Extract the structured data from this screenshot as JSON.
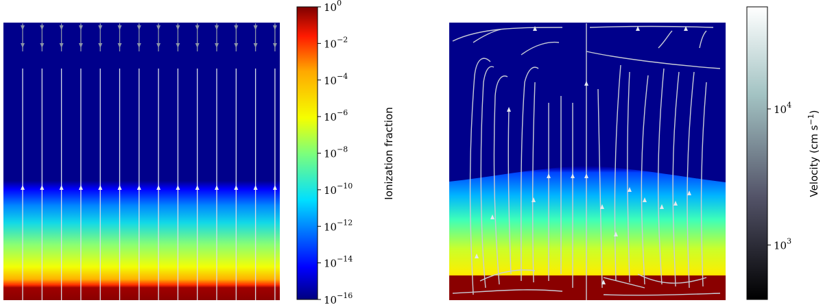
{
  "chart_data": [
    {
      "type": "heatmap",
      "panel": "left",
      "colormap": "jet",
      "z_scale": "log",
      "colorbar": {
        "label": "Ionization fraction",
        "min": 1e-16,
        "max": 1,
        "ticks": [
          {
            "base": "10",
            "exp": "0",
            "value": 1
          },
          {
            "base": "10",
            "exp": "−2",
            "value": 0.01
          },
          {
            "base": "10",
            "exp": "−4",
            "value": 0.0001
          },
          {
            "base": "10",
            "exp": "−6",
            "value": 1e-06
          },
          {
            "base": "10",
            "exp": "−8",
            "value": 1e-08
          },
          {
            "base": "10",
            "exp": "−10",
            "value": 1e-10
          },
          {
            "base": "10",
            "exp": "−12",
            "value": 1e-12
          },
          {
            "base": "10",
            "exp": "−14",
            "value": 1e-14
          },
          {
            "base": "10",
            "exp": "−16",
            "value": 1e-16
          }
        ]
      },
      "vertical_profile": [
        {
          "depth": 0.0,
          "log_value": -16
        },
        {
          "depth": 0.58,
          "log_value": -16
        },
        {
          "depth": 0.66,
          "log_value": -12
        },
        {
          "depth": 0.72,
          "log_value": -11
        },
        {
          "depth": 0.82,
          "log_value": -8.5
        },
        {
          "depth": 0.9,
          "log_value": -6
        },
        {
          "depth": 0.94,
          "log_value": -4
        },
        {
          "depth": 0.96,
          "log_value": 0
        },
        {
          "depth": 1.0,
          "log_value": 0
        }
      ],
      "streamlines": "vertical, upward flow"
    },
    {
      "type": "heatmap",
      "panel": "right",
      "colormap": "bone",
      "z_scale": "log",
      "colorbar": {
        "label": "Velocity (cm s",
        "label_unit_exp": "−1",
        "label_close": ")",
        "ticks": [
          {
            "base": "10",
            "exp": "4",
            "value": 10000
          },
          {
            "base": "10",
            "exp": "3",
            "value": 1000
          }
        ]
      },
      "background_field": "ionization fraction with domed front",
      "streamlines": "mixed convective pattern"
    }
  ]
}
